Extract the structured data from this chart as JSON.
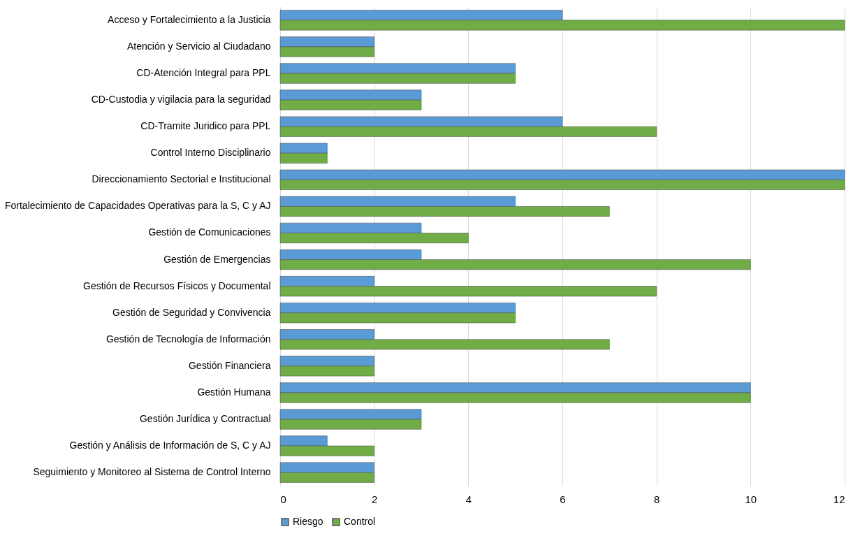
{
  "chart_data": {
    "type": "bar",
    "orientation": "horizontal",
    "categories": [
      "Acceso y Fortalecimiento a la Justicia",
      "Atención y Servicio al Ciudadano",
      "CD-Atención Integral para PPL",
      "CD-Custodia y vigilacia para la seguridad",
      "CD-Tramite Juridico para PPL",
      "Control Interno Disciplinario",
      "Direccionamiento Sectorial e Institucional",
      "Fortalecimiento de Capacidades Operativas para la S, C y AJ",
      "Gestión de Comunicaciones",
      "Gestión de Emergencias",
      "Gestión de Recursos Físicos y Documental",
      "Gestión de Seguridad y Convivencia",
      "Gestión de Tecnología de Información",
      "Gestión Financiera",
      "Gestión Humana",
      "Gestión Jurídica y Contractual",
      "Gestión y Análisis de Información de S, C y AJ",
      "Seguimiento y Monitoreo al Sistema de Control Interno"
    ],
    "series": [
      {
        "name": "Riesgo",
        "color": "#5b9bd5",
        "values": [
          6,
          2,
          5,
          3,
          6,
          1,
          12,
          5,
          3,
          3,
          2,
          5,
          2,
          2,
          10,
          3,
          1,
          2
        ]
      },
      {
        "name": "Control",
        "color": "#70ad47",
        "values": [
          12,
          2,
          5,
          3,
          8,
          1,
          12,
          7,
          4,
          10,
          8,
          5,
          7,
          2,
          10,
          3,
          2,
          2
        ]
      }
    ],
    "xlim": [
      0,
      12
    ],
    "xticks": [
      0,
      2,
      4,
      6,
      8,
      10,
      12
    ],
    "grid": "x",
    "legend": "bottom"
  }
}
